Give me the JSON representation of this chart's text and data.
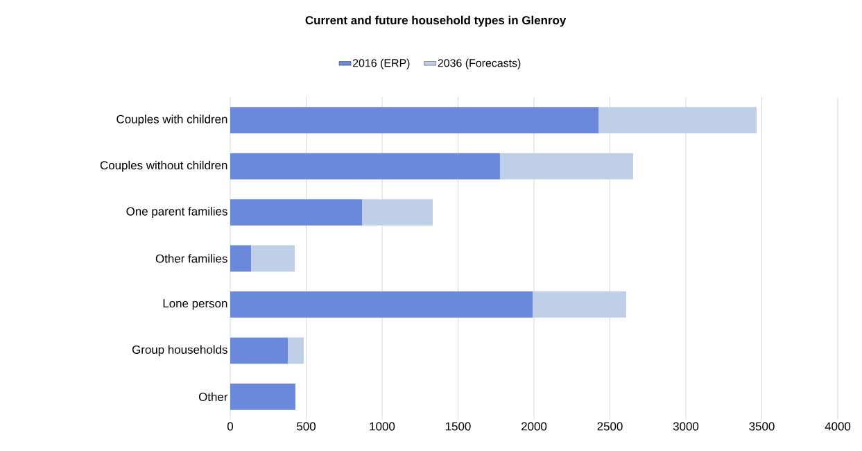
{
  "chart_data": {
    "type": "bar",
    "orientation": "horizontal",
    "stacked": true,
    "title": "Current and future household types in Glenroy",
    "categories": [
      "Couples with children",
      "Couples without children",
      "One parent families",
      "Other families",
      "Lone person",
      "Group households",
      "Other"
    ],
    "series": [
      {
        "name": "2016 (ERP)",
        "color": "#6a89db",
        "values": [
          2425,
          1776,
          868,
          137,
          1991,
          379,
          429
        ]
      },
      {
        "name": "2036 (Forecasts)",
        "color": "#bfcfe8",
        "values": [
          1041,
          877,
          465,
          288,
          616,
          105,
          0
        ]
      }
    ],
    "xlim": [
      0,
      4000
    ],
    "xticks": [
      0,
      500,
      1000,
      1500,
      2000,
      2500,
      3000,
      3500,
      4000
    ],
    "grid": "x",
    "legend": "top"
  }
}
